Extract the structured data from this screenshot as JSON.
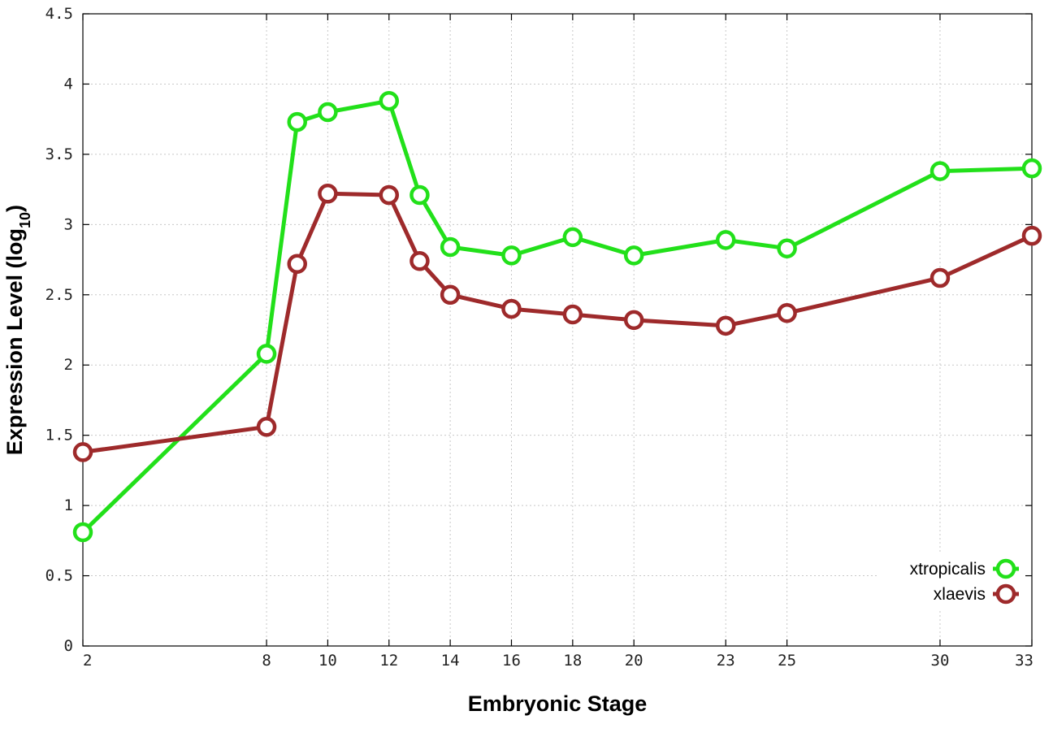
{
  "chart_data": {
    "type": "line",
    "title": "",
    "xlabel": "Embryonic Stage",
    "ylabel_main": "Expression Level (log",
    "ylabel_sub": "10",
    "ylabel_close": ")",
    "xlim": [
      2,
      33
    ],
    "ylim": [
      0,
      4.5
    ],
    "x_ticks": [
      2,
      8,
      10,
      12,
      14,
      16,
      18,
      20,
      23,
      25,
      30,
      33
    ],
    "y_ticks": [
      0,
      0.5,
      1,
      1.5,
      2,
      2.5,
      3,
      3.5,
      4,
      4.5
    ],
    "y_tick_labels": [
      "0",
      "0.5",
      "1",
      "1.5",
      "2",
      "2.5",
      "3",
      "3.5",
      "4",
      "4.5"
    ],
    "grid": true,
    "legend_position": "bottom-right",
    "x": [
      2,
      8,
      9,
      10,
      12,
      13,
      14,
      16,
      18,
      20,
      23,
      25,
      30,
      33
    ],
    "series": [
      {
        "name": "xtropicalis",
        "color": "#22e01a",
        "values": [
          0.81,
          2.08,
          3.73,
          3.8,
          3.88,
          3.21,
          2.84,
          2.78,
          2.91,
          2.78,
          2.89,
          2.83,
          3.38,
          3.4
        ]
      },
      {
        "name": "xlaevis",
        "color": "#9e2a2b",
        "values": [
          1.38,
          1.56,
          2.72,
          3.22,
          3.21,
          2.74,
          2.5,
          2.4,
          2.36,
          2.32,
          2.28,
          2.37,
          2.62,
          2.92
        ]
      }
    ]
  }
}
